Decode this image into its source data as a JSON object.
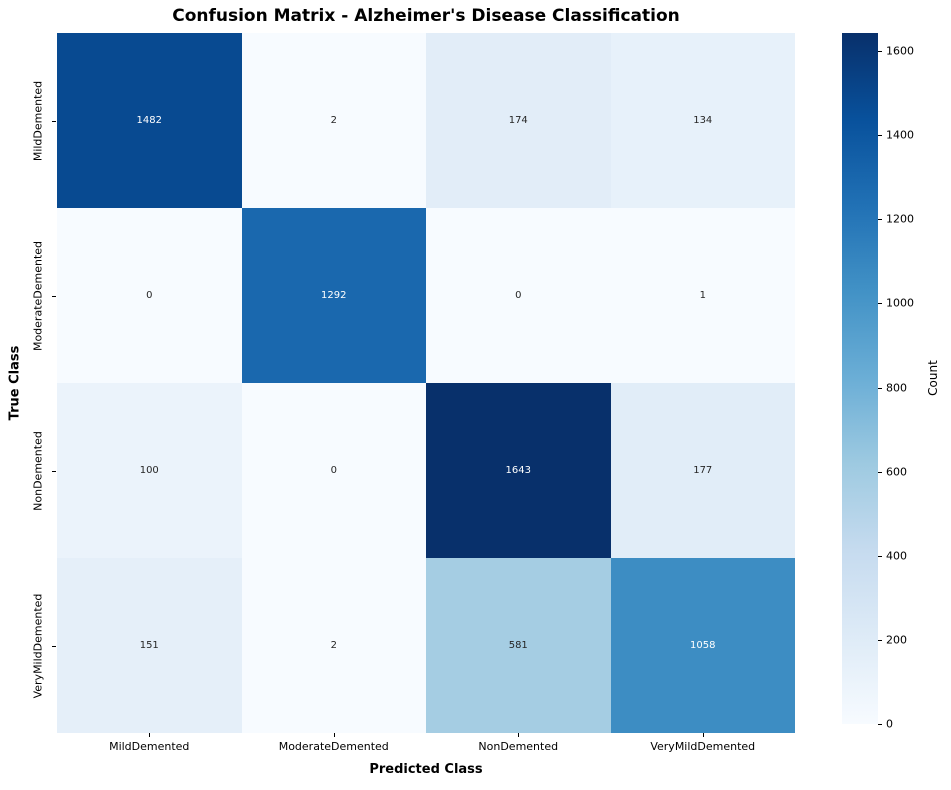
{
  "figure": {
    "background": "#ffffff"
  },
  "chart_data": {
    "type": "heatmap",
    "title": "Confusion Matrix - Alzheimer's Disease Classification",
    "xlabel": "Predicted Class",
    "ylabel": "True Class",
    "x_categories": [
      "MildDemented",
      "ModerateDemented",
      "NonDemented",
      "VeryMildDemented"
    ],
    "y_categories": [
      "MildDemented",
      "ModerateDemented",
      "NonDemented",
      "VeryMildDemented"
    ],
    "matrix": [
      [
        1482,
        2,
        174,
        134
      ],
      [
        0,
        1292,
        0,
        1
      ],
      [
        100,
        0,
        1643,
        177
      ],
      [
        151,
        2,
        581,
        1058
      ]
    ],
    "colorbar": {
      "label": "Count",
      "ticks": [
        0,
        200,
        400,
        600,
        800,
        1000,
        1200,
        1400,
        1600
      ],
      "vmin": 0,
      "vmax": 1643
    },
    "colormap": {
      "name": "Blues",
      "stops": [
        "#f7fbff",
        "#deebf7",
        "#c6dbef",
        "#9ecae1",
        "#6baed6",
        "#4292c6",
        "#2171b5",
        "#08519c",
        "#08306b"
      ]
    },
    "annotation_colors": {
      "dark": "#262626",
      "light": "#ffffff"
    },
    "layout": {
      "grid": false,
      "legend_position": "none",
      "colorbar_position": "right"
    }
  }
}
